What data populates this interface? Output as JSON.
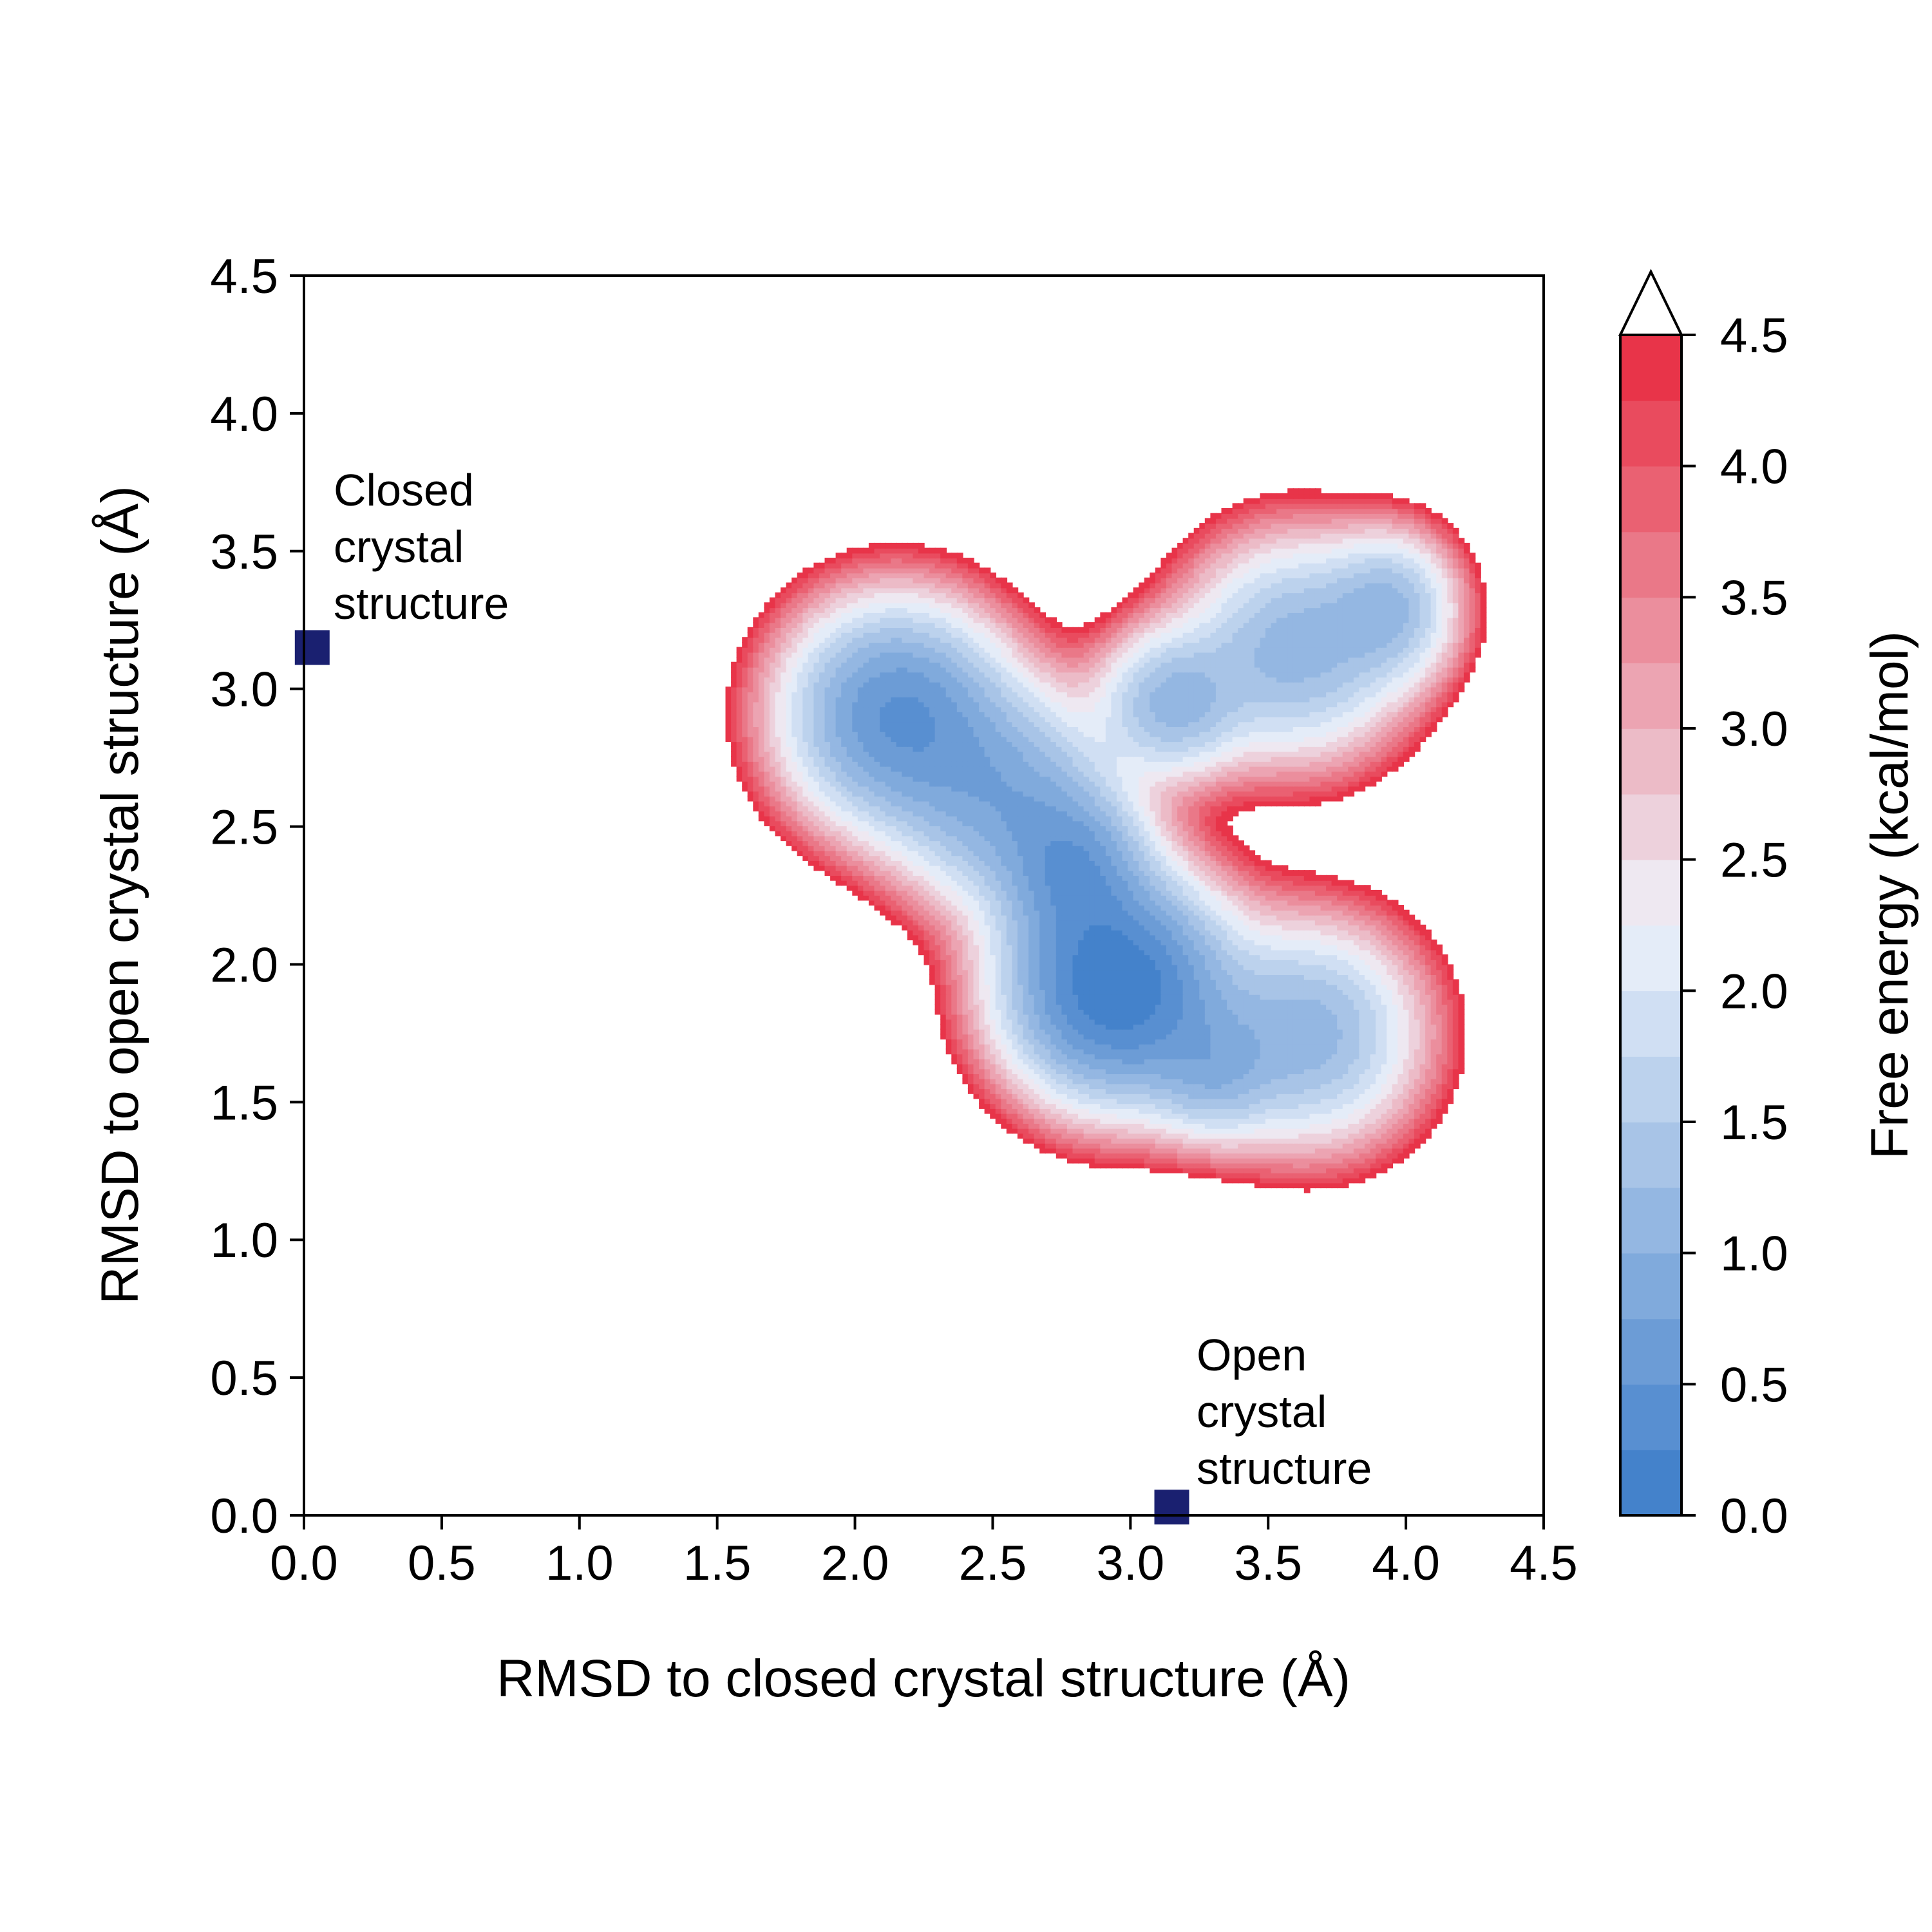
{
  "chart_data": {
    "type": "heatmap",
    "subtype": "filled-contour free energy landscape",
    "title": "",
    "xlabel": "RMSD to closed crystal structure (Å)",
    "ylabel": "RMSD to open crystal structure (Å)",
    "xlim": [
      0,
      4.5
    ],
    "ylim": [
      0,
      4.5
    ],
    "xticks": [
      "0.0",
      "0.5",
      "1.0",
      "1.5",
      "2.0",
      "2.5",
      "3.0",
      "3.5",
      "4.0",
      "4.5"
    ],
    "yticks": [
      "0.0",
      "0.5",
      "1.0",
      "1.5",
      "2.0",
      "2.5",
      "3.0",
      "3.5",
      "4.0",
      "4.5"
    ],
    "grid": false,
    "colorbar": {
      "label": "Free energy (kcal/mol)",
      "range": [
        0,
        4.5
      ],
      "ticks": [
        "0.0",
        "0.5",
        "1.0",
        "1.5",
        "2.0",
        "2.5",
        "3.0",
        "3.5",
        "4.0",
        "4.5"
      ],
      "levels": 18,
      "extend": "max",
      "colormap_low": "#3a7bc8",
      "colormap_mid": "#eef3fb",
      "colormap_high": "#e8293e"
    },
    "minima": [
      {
        "x": 2.95,
        "y": 1.92,
        "energy": 0.0
      },
      {
        "x": 2.15,
        "y": 2.91,
        "energy": 0.35
      },
      {
        "x": 2.55,
        "y": 2.6,
        "energy": 0.7
      },
      {
        "x": 3.6,
        "y": 3.15,
        "energy": 0.8
      },
      {
        "x": 3.65,
        "y": 1.75,
        "energy": 0.8
      }
    ],
    "markers": [
      {
        "name": "closed-crystal-structure",
        "label": [
          "Closed",
          "crystal",
          "structure"
        ],
        "x": 0.03,
        "y": 3.15,
        "color": "#1a2070"
      },
      {
        "name": "open-crystal-structure",
        "label": [
          "Open",
          "crystal",
          "structure"
        ],
        "x": 3.15,
        "y": 0.03,
        "color": "#1a2070"
      }
    ]
  }
}
